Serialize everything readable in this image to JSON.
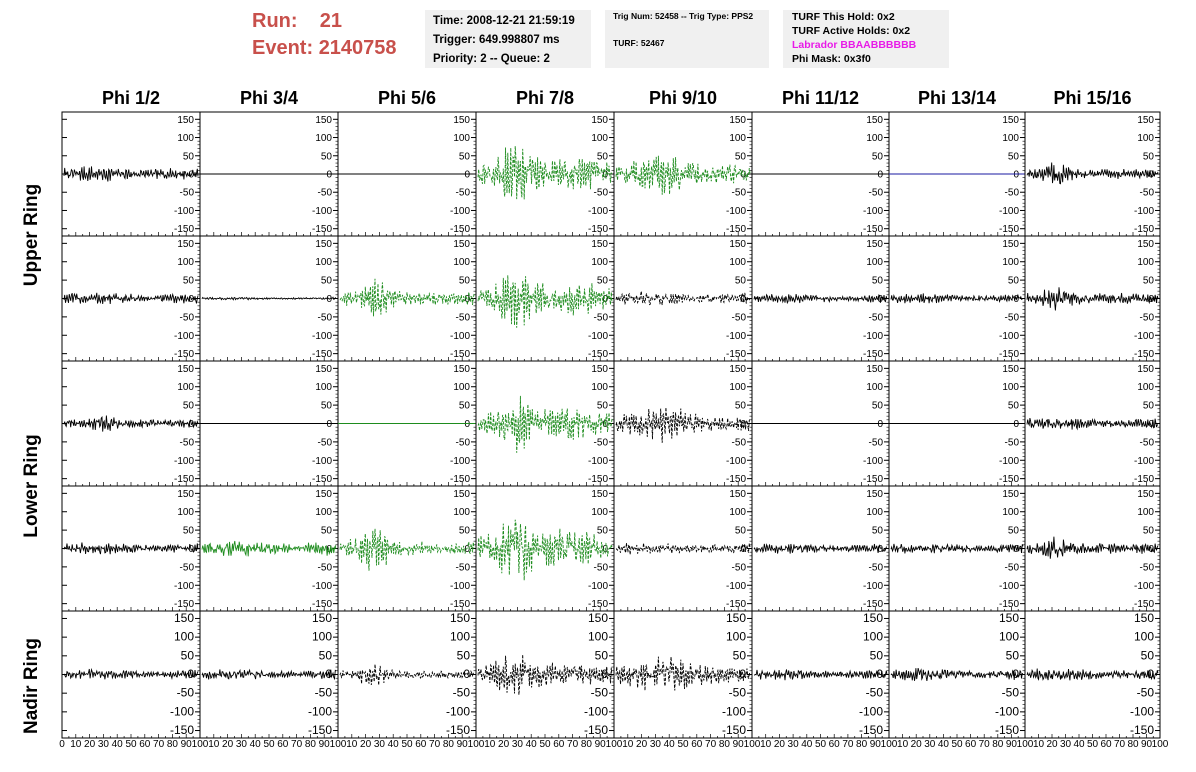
{
  "header": {
    "run_label": "Run:",
    "run_value": "21",
    "event_label": "Event:",
    "event_value": "2140758",
    "time": "Time: 2008-12-21 21:59:19",
    "trigger": "Trigger: 649.998807 ms",
    "priority": "Priority: 2 -- Queue: 2",
    "trig_num": "Trig Num: 52458 -- Trig Type: PPS2",
    "turf": "TURF: 52467",
    "turf_hold": "TURF This Hold: 0x2",
    "turf_active": "TURF Active Holds: 0x2",
    "labrador": "Labrador BBAABBBBBB",
    "phi_mask": "Phi Mask: 0x3f0"
  },
  "chart_data": {
    "type": "line",
    "columns": [
      "Phi 1/2",
      "Phi 3/4",
      "Phi 5/6",
      "Phi 7/8",
      "Phi 9/10",
      "Phi 11/12",
      "Phi 13/14",
      "Phi 15/16"
    ],
    "rows": [
      "Upper Ring",
      "Lower Ring",
      "Nadir Ring"
    ],
    "subplot_rows": 5,
    "x_range": [
      0,
      100
    ],
    "x_ticks": [
      "0",
      "10",
      "20",
      "30",
      "40",
      "50",
      "60",
      "70",
      "80",
      "90",
      "100"
    ],
    "y_range": [
      -170,
      170
    ],
    "y_ticks": [
      "150",
      "100",
      "50",
      "0",
      "-50",
      "-100",
      "-150"
    ],
    "colors": {
      "normal": "#000000",
      "triggered": "#1e8c1e",
      "flat_blue": "#1a1aa0"
    },
    "panels": [
      [
        {
          "s": "solid",
          "c": "normal",
          "a": 18,
          "sp": 0
        },
        {
          "s": "flat",
          "c": "normal",
          "a": 0
        },
        {
          "s": "flat",
          "c": "normal",
          "a": 0
        },
        {
          "s": "dash",
          "c": "triggered",
          "a": 70,
          "sp": 1
        },
        {
          "s": "dash",
          "c": "triggered",
          "a": 42,
          "sp": 2
        },
        {
          "s": "flat",
          "c": "normal",
          "a": 0
        },
        {
          "s": "flat",
          "c": "flat_blue",
          "a": 0
        },
        {
          "s": "solid",
          "c": "normal",
          "a": 28,
          "sp": 3
        }
      ],
      [
        {
          "s": "solid",
          "c": "normal",
          "a": 14,
          "sp": 0
        },
        {
          "s": "solid",
          "c": "normal",
          "a": 3,
          "sp": 0
        },
        {
          "s": "dash",
          "c": "triggered",
          "a": 48,
          "sp": 4
        },
        {
          "s": "dash",
          "c": "triggered",
          "a": 70,
          "sp": 1
        },
        {
          "s": "dash",
          "c": "normal",
          "a": 16,
          "sp": 0
        },
        {
          "s": "solid",
          "c": "normal",
          "a": 11,
          "sp": 0
        },
        {
          "s": "solid",
          "c": "normal",
          "a": 11,
          "sp": 0
        },
        {
          "s": "solid",
          "c": "normal",
          "a": 30,
          "sp": 3
        }
      ],
      [
        {
          "s": "solid",
          "c": "normal",
          "a": 18,
          "sp": 5
        },
        {
          "s": "flat",
          "c": "normal",
          "a": 0
        },
        {
          "s": "flat",
          "c": "triggered",
          "a": 0
        },
        {
          "s": "dash",
          "c": "triggered",
          "a": 62,
          "sp": 1
        },
        {
          "s": "dash",
          "c": "normal",
          "a": 35,
          "sp": 2
        },
        {
          "s": "flat",
          "c": "normal",
          "a": 0
        },
        {
          "s": "flat",
          "c": "normal",
          "a": 0
        },
        {
          "s": "solid",
          "c": "normal",
          "a": 14,
          "sp": 0
        }
      ],
      [
        {
          "s": "solid",
          "c": "normal",
          "a": 13,
          "sp": 0
        },
        {
          "s": "solid",
          "c": "triggered",
          "a": 18,
          "sp": 0
        },
        {
          "s": "dash",
          "c": "triggered",
          "a": 52,
          "sp": 4
        },
        {
          "s": "dash",
          "c": "triggered",
          "a": 75,
          "sp": 1
        },
        {
          "s": "dash",
          "c": "normal",
          "a": 14,
          "sp": 0
        },
        {
          "s": "solid",
          "c": "normal",
          "a": 12,
          "sp": 0
        },
        {
          "s": "solid",
          "c": "normal",
          "a": 12,
          "sp": 0
        },
        {
          "s": "solid",
          "c": "normal",
          "a": 28,
          "sp": 3
        }
      ],
      [
        {
          "s": "solid",
          "c": "normal",
          "a": 12,
          "sp": 0
        },
        {
          "s": "solid",
          "c": "normal",
          "a": 12,
          "sp": 0
        },
        {
          "s": "dash",
          "c": "normal",
          "a": 28,
          "sp": 4
        },
        {
          "s": "dash",
          "c": "normal",
          "a": 52,
          "sp": 1
        },
        {
          "s": "dash",
          "c": "normal",
          "a": 38,
          "sp": 2
        },
        {
          "s": "solid",
          "c": "normal",
          "a": 12,
          "sp": 0
        },
        {
          "s": "solid",
          "c": "normal",
          "a": 14,
          "sp": 0
        },
        {
          "s": "solid",
          "c": "normal",
          "a": 14,
          "sp": 0
        }
      ]
    ]
  }
}
